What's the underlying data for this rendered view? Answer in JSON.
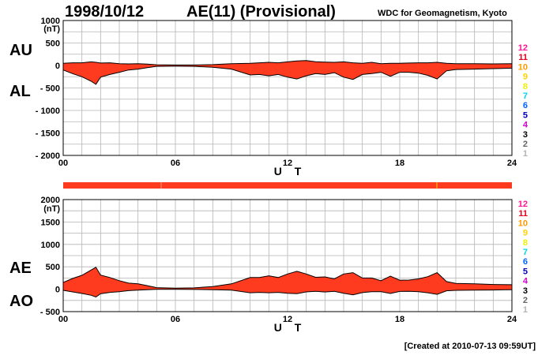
{
  "header": {
    "date": "1998/10/12",
    "title": "AE(11) (Provisional)",
    "source": "WDC for Geomagnetism, Kyoto"
  },
  "footer": {
    "created": "[Created at 2010-07-13 09:59UT]"
  },
  "colors": {
    "fill": "#ff3b1f",
    "grid": "#b4b4b4",
    "flag_bar": "#ff3b1f"
  },
  "station_legend": [
    {
      "label": "12",
      "color": "#ff1493"
    },
    {
      "label": "11",
      "color": "#e8001c"
    },
    {
      "label": "10",
      "color": "#ff9900"
    },
    {
      "label": "9",
      "color": "#ffd200"
    },
    {
      "label": "8",
      "color": "#f0f000"
    },
    {
      "label": "7",
      "color": "#00d2e6"
    },
    {
      "label": "6",
      "color": "#0064ff"
    },
    {
      "label": "5",
      "color": "#0000b4"
    },
    {
      "label": "4",
      "color": "#d200d2"
    },
    {
      "label": "3",
      "color": "#000000"
    },
    {
      "label": "2",
      "color": "#646464"
    },
    {
      "label": "1",
      "color": "#b4b4b4"
    }
  ],
  "chart_data": [
    {
      "type": "area",
      "upper_series_label": "AU",
      "lower_series_label": "AL",
      "unit": "(nT)",
      "xlabel": "U T",
      "x_ticks": [
        "00",
        "06",
        "12",
        "18",
        "24"
      ],
      "xlim": [
        0,
        24
      ],
      "ylim": [
        -2000,
        1000
      ],
      "y_ticks": [
        1000,
        500,
        0,
        -500,
        -1000,
        -1500,
        -2000
      ],
      "y_tick_labels": [
        "1000",
        "500",
        "0",
        "- 500",
        "- 1000",
        "- 1500",
        "- 2000"
      ],
      "grid": true,
      "x_hours": [
        0,
        0.5,
        1,
        1.5,
        1.75,
        2,
        2.5,
        3,
        3.5,
        4,
        4.5,
        5,
        6,
        7,
        8,
        9,
        10,
        10.5,
        11,
        11.5,
        12,
        12.5,
        13,
        13.5,
        14,
        14.5,
        15,
        15.5,
        16,
        16.5,
        17,
        17.5,
        18,
        18.5,
        19,
        19.5,
        20,
        20.5,
        21,
        22,
        23,
        24
      ],
      "upper_values": [
        50,
        60,
        60,
        80,
        70,
        55,
        60,
        40,
        35,
        40,
        30,
        15,
        10,
        10,
        20,
        40,
        50,
        60,
        70,
        60,
        80,
        100,
        110,
        85,
        75,
        70,
        80,
        60,
        50,
        70,
        40,
        50,
        50,
        55,
        60,
        60,
        70,
        50,
        40,
        40,
        35,
        40
      ],
      "lower_values": [
        -100,
        -180,
        -250,
        -350,
        -420,
        -260,
        -200,
        -150,
        -100,
        -80,
        -50,
        -20,
        -15,
        -20,
        -40,
        -80,
        -210,
        -200,
        -230,
        -200,
        -260,
        -300,
        -230,
        -180,
        -200,
        -160,
        -260,
        -310,
        -200,
        -180,
        -150,
        -240,
        -150,
        -150,
        -170,
        -220,
        -300,
        -120,
        -90,
        -80,
        -70,
        -60
      ]
    },
    {
      "type": "area",
      "upper_series_label": "AE",
      "lower_series_label": "AO",
      "unit": "(nT)",
      "xlabel": "U T",
      "x_ticks": [
        "00",
        "06",
        "12",
        "18",
        "24"
      ],
      "xlim": [
        0,
        24
      ],
      "ylim": [
        -500,
        2000
      ],
      "y_ticks": [
        2000,
        1500,
        1000,
        500,
        0,
        -500
      ],
      "y_tick_labels": [
        "2000",
        "1500",
        "1000",
        "500",
        "0",
        "- 500"
      ],
      "grid": true,
      "x_hours": [
        0,
        0.5,
        1,
        1.5,
        1.75,
        2,
        2.5,
        3,
        3.5,
        4,
        4.5,
        5,
        6,
        7,
        8,
        9,
        10,
        10.5,
        11,
        11.5,
        12,
        12.5,
        13,
        13.5,
        14,
        14.5,
        15,
        15.5,
        16,
        16.5,
        17,
        17.5,
        18,
        18.5,
        19,
        19.5,
        20,
        20.5,
        21,
        22,
        23,
        24
      ],
      "ae_values": [
        150,
        240,
        310,
        430,
        490,
        315,
        260,
        190,
        135,
        120,
        80,
        35,
        25,
        30,
        60,
        120,
        260,
        260,
        300,
        260,
        340,
        400,
        340,
        265,
        275,
        230,
        340,
        370,
        250,
        250,
        190,
        290,
        200,
        205,
        230,
        280,
        370,
        170,
        130,
        120,
        105,
        100
      ],
      "ao_values": [
        -25,
        -60,
        -95,
        -135,
        -175,
        -102,
        -70,
        -55,
        -32,
        -20,
        -10,
        -2,
        -2,
        -5,
        -10,
        -20,
        -80,
        -70,
        -80,
        -70,
        -90,
        -100,
        -60,
        -48,
        -62,
        -45,
        -90,
        -125,
        -75,
        -55,
        -55,
        -95,
        -50,
        -48,
        -55,
        -80,
        -115,
        -35,
        -25,
        -20,
        -18,
        -10
      ]
    }
  ]
}
